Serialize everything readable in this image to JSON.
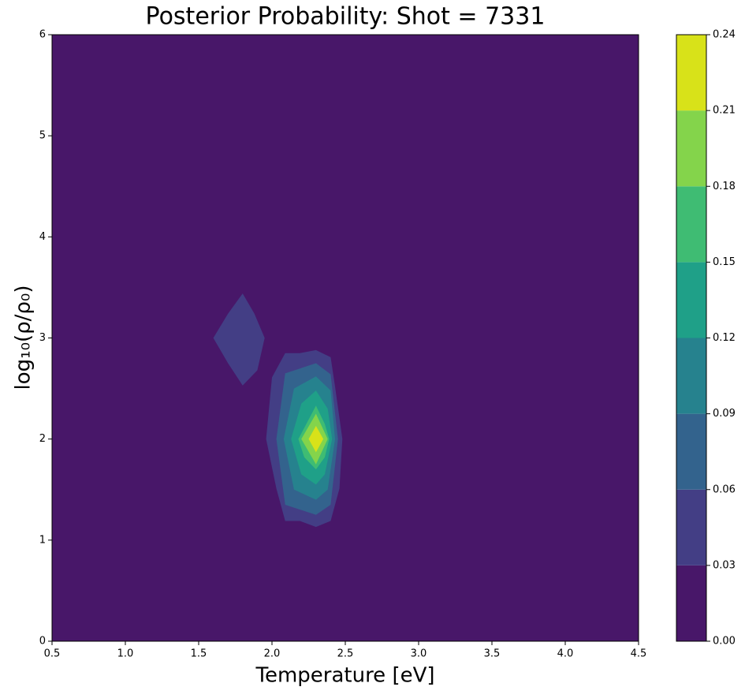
{
  "chart_data": {
    "type": "contourf",
    "title": "Posterior Probability: Shot = 7331",
    "xlabel": "Temperature [eV]",
    "ylabel": "log₁₀(ρ/ρ₀)",
    "xlim": [
      0.5,
      4.5
    ],
    "xticks": [
      0.5,
      {
        "value": 1,
        "label": "1.0"
      },
      1.5,
      {
        "value": 2,
        "label": "2.0"
      },
      2.5,
      {
        "value": 3,
        "label": "3.0"
      },
      3.5,
      {
        "value": 4,
        "label": "4.0"
      },
      4.5
    ],
    "ylim": [
      0,
      6
    ],
    "yticks": [
      0,
      1,
      2,
      3,
      4,
      5,
      6
    ],
    "levels": [
      0,
      0.03,
      0.06,
      0.09,
      0.12,
      0.15,
      0.18,
      0.21,
      0.24
    ],
    "colors": [
      "#481769",
      "#433e85",
      "#33638d",
      "#26828e",
      "#1fa088",
      "#3fbc73",
      "#84d44b",
      "#d8e219"
    ],
    "colorbar_ticks": [
      {
        "value": 0,
        "label": "0.00"
      },
      {
        "value": 0.03,
        "label": "0.03"
      },
      {
        "value": 0.06,
        "label": "0.06"
      },
      {
        "value": 0.09,
        "label": "0.09"
      },
      {
        "value": 0.12,
        "label": "0.12"
      },
      {
        "value": 0.15,
        "label": "0.15"
      },
      {
        "value": 0.18,
        "label": "0.18"
      },
      {
        "value": 0.21,
        "label": "0.21"
      },
      {
        "value": 0.24,
        "label": "0.24"
      }
    ],
    "regions": [
      {
        "level": 0.03,
        "x": [
          1.6,
          1.7,
          1.8,
          1.88,
          1.95,
          1.9,
          1.8,
          1.7
        ],
        "y": [
          3.0,
          3.24,
          3.44,
          3.24,
          3.0,
          2.68,
          2.53,
          2.75
        ]
      },
      {
        "level": 0.03,
        "x": [
          1.96,
          2.0,
          2.09,
          2.19,
          2.3,
          2.4,
          2.43,
          2.48,
          2.46,
          2.4,
          2.3,
          2.19,
          2.09,
          2.03
        ],
        "y": [
          2.0,
          2.61,
          2.85,
          2.85,
          2.88,
          2.81,
          2.52,
          2.0,
          1.51,
          1.19,
          1.13,
          1.19,
          1.19,
          1.51
        ]
      },
      {
        "level": 0.06,
        "x": [
          2.03,
          2.09,
          2.3,
          2.4,
          2.45,
          2.4,
          2.3,
          2.09
        ],
        "y": [
          2.0,
          2.65,
          2.75,
          2.64,
          2.0,
          1.35,
          1.25,
          1.35
        ]
      },
      {
        "level": 0.09,
        "x": [
          2.08,
          2.15,
          2.3,
          2.4,
          2.43,
          2.38,
          2.3,
          2.15
        ],
        "y": [
          2.0,
          2.5,
          2.62,
          2.48,
          2.0,
          1.5,
          1.4,
          1.5
        ]
      },
      {
        "level": 0.12,
        "x": [
          2.13,
          2.2,
          2.3,
          2.38,
          2.41,
          2.36,
          2.3,
          2.2
        ],
        "y": [
          2.0,
          2.35,
          2.48,
          2.3,
          2.0,
          1.65,
          1.55,
          1.65
        ]
      },
      {
        "level": 0.15,
        "x": [
          2.18,
          2.3,
          2.36,
          2.39,
          2.36,
          2.3,
          2.22
        ],
        "y": [
          2.0,
          2.33,
          2.15,
          2.0,
          1.82,
          1.7,
          1.82
        ]
      },
      {
        "level": 0.18,
        "x": [
          2.2,
          2.3,
          2.38,
          2.3
        ],
        "y": [
          2.0,
          2.25,
          2.0,
          1.75
        ]
      },
      {
        "level": 0.21,
        "x": [
          2.25,
          2.3,
          2.35,
          2.3
        ],
        "y": [
          2.0,
          2.13,
          2.0,
          1.87
        ]
      }
    ]
  }
}
